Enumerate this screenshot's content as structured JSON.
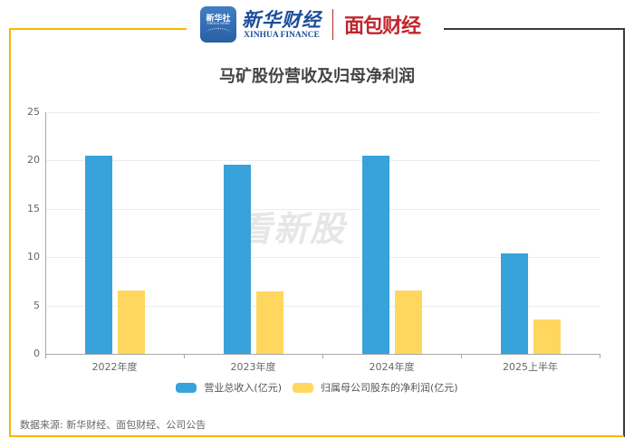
{
  "header": {
    "logo_xinhua_badge": "新华社",
    "logo_xinhua_badge_sub": "XINHUA NEWS",
    "logo_xinhua_cn": "新华财经",
    "logo_xinhua_en": "XINHUA FINANCE",
    "logo_mianbao": "面包财经"
  },
  "watermark": "看新股",
  "source_text": "数据来源: 新华财经、面包财经、公司公告",
  "colors": {
    "revenue": "#38A2DB",
    "net_profit": "#FFD75E",
    "frame_accent": "#F5B800",
    "frame_dark": "#3a3a3a"
  },
  "chart_data": {
    "type": "bar",
    "title": "马矿股份营收及归母净利润",
    "xlabel": "",
    "ylabel": "",
    "ylim": [
      0,
      25
    ],
    "yticks": [
      0,
      5,
      10,
      15,
      20,
      25
    ],
    "grid": true,
    "legend_position": "bottom",
    "categories": [
      "2022年度",
      "2023年度",
      "2024年度",
      "2025上半年"
    ],
    "series": [
      {
        "name": "营业总收入(亿元)",
        "values": [
          20.55,
          19.6,
          20.5,
          10.4
        ]
      },
      {
        "name": "归属母公司股东的净利润(亿元)",
        "values": [
          6.55,
          6.45,
          6.6,
          3.55
        ]
      }
    ]
  }
}
